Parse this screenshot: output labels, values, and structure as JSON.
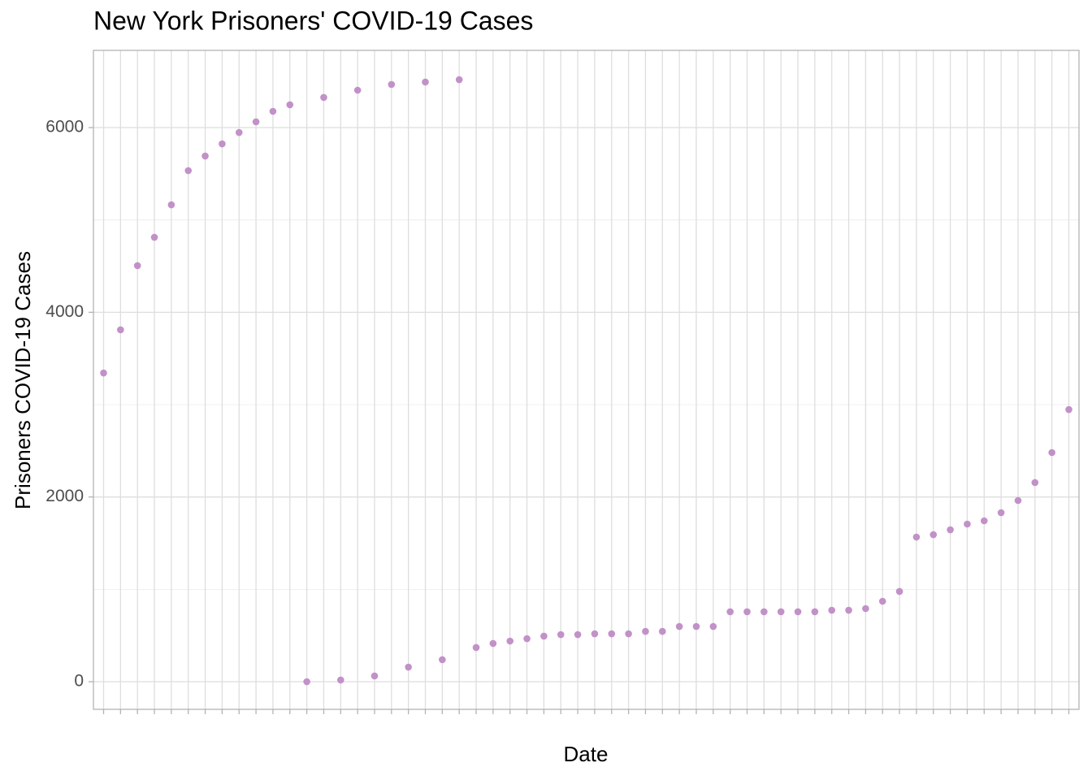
{
  "chart_data": {
    "type": "scatter",
    "title": "New York Prisoners' COVID-19 Cases",
    "x_label": "Date",
    "y_label": "Prisoners COVID-19 Cases",
    "categories": [
      null,
      null,
      null,
      null,
      null,
      null,
      null,
      null,
      null,
      null,
      null,
      null,
      null,
      null,
      null,
      null,
      null,
      null,
      null,
      null,
      null,
      null,
      null,
      null,
      null,
      null,
      null,
      null,
      null,
      null,
      null,
      null,
      null,
      null,
      null,
      null,
      null,
      null,
      null,
      null,
      null,
      null,
      null,
      null,
      null,
      null,
      null,
      null,
      null,
      null,
      null,
      null,
      null,
      null,
      null,
      null,
      null,
      null
    ],
    "values": [
      3343,
      3810,
      4505,
      4812,
      5164,
      5534,
      5692,
      5824,
      5947,
      6062,
      6176,
      6247,
      0,
      6326,
      18,
      6405,
      62,
      6467,
      158,
      6493,
      238,
      6519,
      370,
      414,
      440,
      466,
      493,
      510,
      510,
      519,
      519,
      519,
      545,
      545,
      598,
      598,
      598,
      757,
      757,
      757,
      757,
      757,
      757,
      774,
      774,
      792,
      871,
      977,
      1566,
      1592,
      1645,
      1707,
      1742,
      1830,
      1962,
      2156,
      2481,
      2947
    ],
    "color": "#c291c8",
    "ylim": [
      -299,
      6836
    ],
    "yticks": [
      0,
      2000,
      4000,
      6000
    ],
    "y_minor_ticks": [
      1000,
      3000,
      5000
    ],
    "grid": true
  }
}
